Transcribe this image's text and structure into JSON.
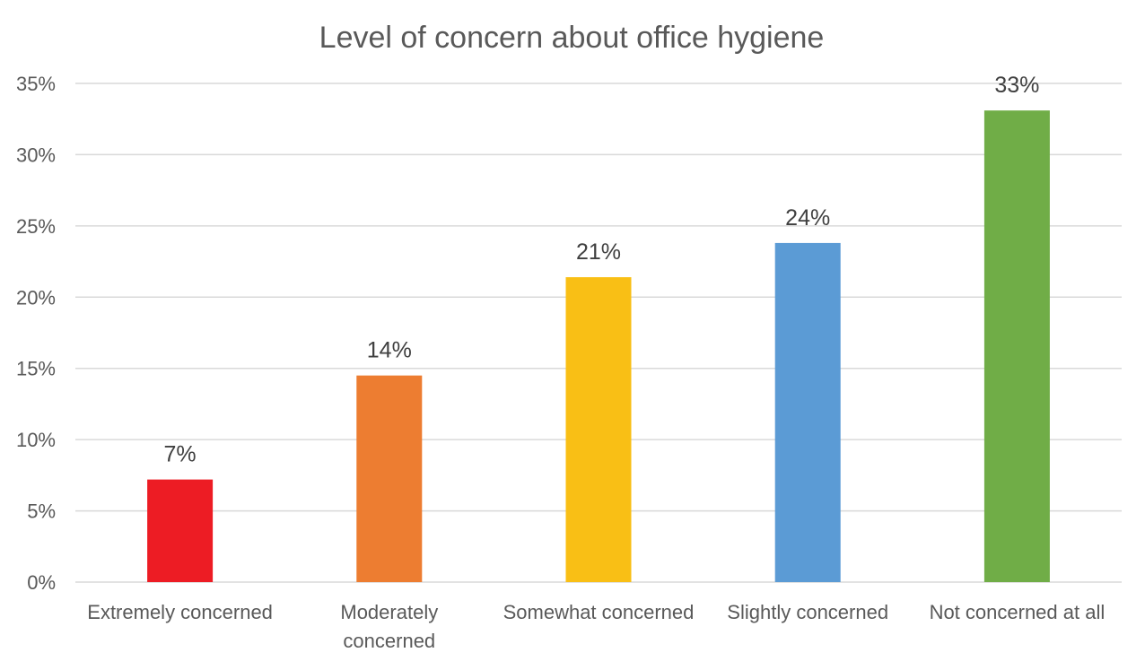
{
  "chart_data": {
    "type": "bar",
    "title": "Level of concern about office hygiene",
    "xlabel": "",
    "ylabel": "",
    "ylim": [
      0,
      35
    ],
    "y_ticks": [
      {
        "value": 0,
        "label": "0%"
      },
      {
        "value": 5,
        "label": "5%"
      },
      {
        "value": 10,
        "label": "10%"
      },
      {
        "value": 15,
        "label": "15%"
      },
      {
        "value": 20,
        "label": "20%"
      },
      {
        "value": 25,
        "label": "25%"
      },
      {
        "value": 30,
        "label": "30%"
      },
      {
        "value": 35,
        "label": "35%"
      }
    ],
    "grid": true,
    "legend": "none",
    "categories": [
      [
        "Extremely concerned"
      ],
      [
        "Moderately",
        "concerned"
      ],
      [
        "Somewhat concerned"
      ],
      [
        "Slightly concerned"
      ],
      [
        "Not concerned at all"
      ]
    ],
    "values": [
      7.2,
      14.5,
      21.4,
      23.8,
      33.1
    ],
    "data_labels": [
      "7%",
      "14%",
      "21%",
      "24%",
      "33%"
    ],
    "colors": [
      "#ed1c24",
      "#ed7d31",
      "#f9bf15",
      "#5b9bd5",
      "#70ad47"
    ]
  }
}
